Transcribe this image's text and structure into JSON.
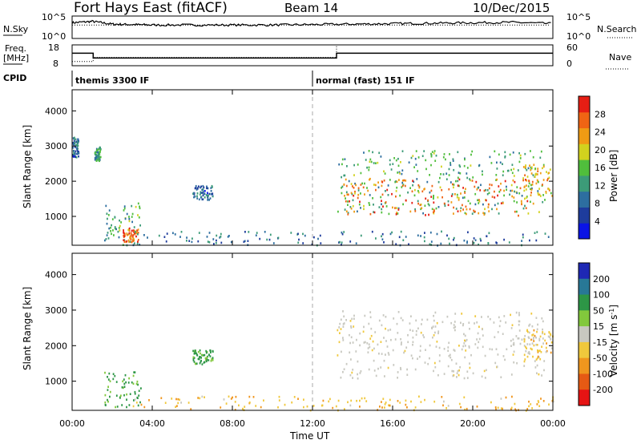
{
  "header": {
    "station": "Fort Hays East (fitACF)",
    "beam": "Beam 14",
    "date": "10/Dec/2015"
  },
  "strip_labels": {
    "nsky": "N.Sky",
    "nsearch": "N.Search",
    "freq_line1": "Freq.",
    "freq_line2": "[MHz]",
    "nave": "Nave",
    "cpid": "CPID",
    "sky_ticks": [
      "10^5",
      "10^0"
    ],
    "search_ticks": [
      "10^5",
      "10^0"
    ],
    "freq_ticks": [
      "18",
      "8"
    ],
    "nave_ticks": [
      "60",
      "0"
    ]
  },
  "cpid_segments": [
    {
      "label": "themis 3300 IF",
      "start_hour": 0
    },
    {
      "label": "normal (fast) 151 IF",
      "start_hour": 12
    }
  ],
  "chart_data": [
    {
      "type": "line",
      "title": "N.Sky / N.Search",
      "x_unit": "hours UT",
      "xlim": [
        0,
        24
      ],
      "series": [
        {
          "name": "N.Sky",
          "style": "solid",
          "x": [
            0,
            1,
            2,
            3,
            4,
            6,
            8,
            10,
            12,
            14,
            16,
            18,
            20,
            22,
            24
          ],
          "y_log10": [
            3.5,
            3.8,
            3.2,
            3.1,
            3.0,
            3.0,
            3.0,
            3.0,
            3.1,
            3.2,
            3.3,
            3.4,
            3.5,
            3.6,
            3.3
          ]
        },
        {
          "name": "N.Search",
          "style": "dotted",
          "x": [
            0,
            4,
            8,
            12,
            16,
            20,
            24
          ],
          "y_log10": [
            3.0,
            3.0,
            3.0,
            3.0,
            3.0,
            3.0,
            3.0
          ]
        }
      ],
      "ylim_log10": [
        0,
        5
      ]
    },
    {
      "type": "line",
      "title": "Freq. / Nave",
      "xlim": [
        0,
        24
      ],
      "series": [
        {
          "name": "Freq. [MHz]",
          "style": "solid",
          "x": [
            0,
            1.05,
            1.05,
            13.2,
            13.2,
            24
          ],
          "y": [
            14,
            14,
            11.7,
            11.7,
            14,
            14
          ]
        },
        {
          "name": "Nave",
          "style": "dotted",
          "x": [
            0,
            1.05,
            1.05,
            13.2,
            13.2,
            24
          ],
          "y": [
            10,
            10,
            12,
            12,
            18,
            18
          ]
        }
      ],
      "ylim": [
        8,
        18
      ]
    },
    {
      "type": "heatmap",
      "title": "Power [dB]",
      "ylabel": "Slant Range [km]",
      "xlim": [
        0,
        24
      ],
      "ylim": [
        180,
        4600
      ],
      "yticks": [
        1000,
        2000,
        3000,
        4000
      ],
      "colorbar": {
        "label": "Power [dB]",
        "range": [
          0,
          32
        ],
        "ticks": [
          4,
          8,
          12,
          16,
          20,
          24,
          28
        ],
        "colors": [
          "#0a14e6",
          "#1e3c9c",
          "#2d6ea0",
          "#3c9b78",
          "#50be3c",
          "#d2d21e",
          "#f09b14",
          "#f06414",
          "#e61e14"
        ]
      },
      "features": [
        {
          "hours": [
            0.0,
            0.3
          ],
          "range_km": [
            2700,
            3300
          ],
          "level_db": 8
        },
        {
          "hours": [
            1.1,
            1.4
          ],
          "range_km": [
            2600,
            3000
          ],
          "level_db": 12
        },
        {
          "hours": [
            1.6,
            3.4
          ],
          "range_km": [
            200,
            1400
          ],
          "level_db": 14
        },
        {
          "hours": [
            2.5,
            3.3
          ],
          "range_km": [
            300,
            700
          ],
          "level_db": 26
        },
        {
          "hours": [
            6.0,
            7.0
          ],
          "range_km": [
            1500,
            1900
          ],
          "level_db": 8
        },
        {
          "hours": [
            3.0,
            24.0
          ],
          "range_km": [
            200,
            600
          ],
          "level_db": 9
        },
        {
          "hours": [
            13.2,
            23.6
          ],
          "range_km": [
            1100,
            2900
          ],
          "level_db": 14
        },
        {
          "hours": [
            13.5,
            23.0
          ],
          "range_km": [
            1050,
            2100
          ],
          "level_db": 26
        },
        {
          "hours": [
            22.5,
            24.0
          ],
          "range_km": [
            1600,
            2500
          ],
          "level_db": 22
        }
      ]
    },
    {
      "type": "heatmap",
      "title": "Velocity [m s^-1]",
      "ylabel": "Slant Range [km]",
      "xlabel": "Time UT",
      "xlim": [
        0,
        24
      ],
      "ylim": [
        180,
        4600
      ],
      "yticks": [
        1000,
        2000,
        3000,
        4000
      ],
      "xticks": [
        "00:00",
        "04:00",
        "08:00",
        "12:00",
        "16:00",
        "20:00",
        "00:00"
      ],
      "colorbar": {
        "label": "Velocity [m s^-1]",
        "ticks": [
          200,
          100,
          50,
          15,
          -15,
          -50,
          -100,
          -200
        ],
        "colors": [
          "#1e28b4",
          "#287896",
          "#2d9646",
          "#82c83c",
          "#c8c8c0",
          "#f0c83c",
          "#f0961e",
          "#e65a14",
          "#e61414"
        ]
      },
      "features": [
        {
          "hours": [
            1.6,
            3.4
          ],
          "range_km": [
            300,
            1300
          ],
          "velocity": 60
        },
        {
          "hours": [
            6.0,
            7.0
          ],
          "range_km": [
            1500,
            1900
          ],
          "velocity": 60
        },
        {
          "hours": [
            3.0,
            24.0
          ],
          "range_km": [
            200,
            600
          ],
          "velocity": -40
        },
        {
          "hours": [
            13.2,
            23.6
          ],
          "range_km": [
            1100,
            3000
          ],
          "velocity": 0
        },
        {
          "hours": [
            22.5,
            24.0
          ],
          "range_km": [
            1600,
            2500
          ],
          "velocity": -30
        }
      ]
    }
  ],
  "colorbar_labels": {
    "power": "Power [dB]",
    "velocity": "Velocity [m s^-1]"
  },
  "axis_labels": {
    "y": "Slant Range [km]",
    "x": "Time UT"
  }
}
